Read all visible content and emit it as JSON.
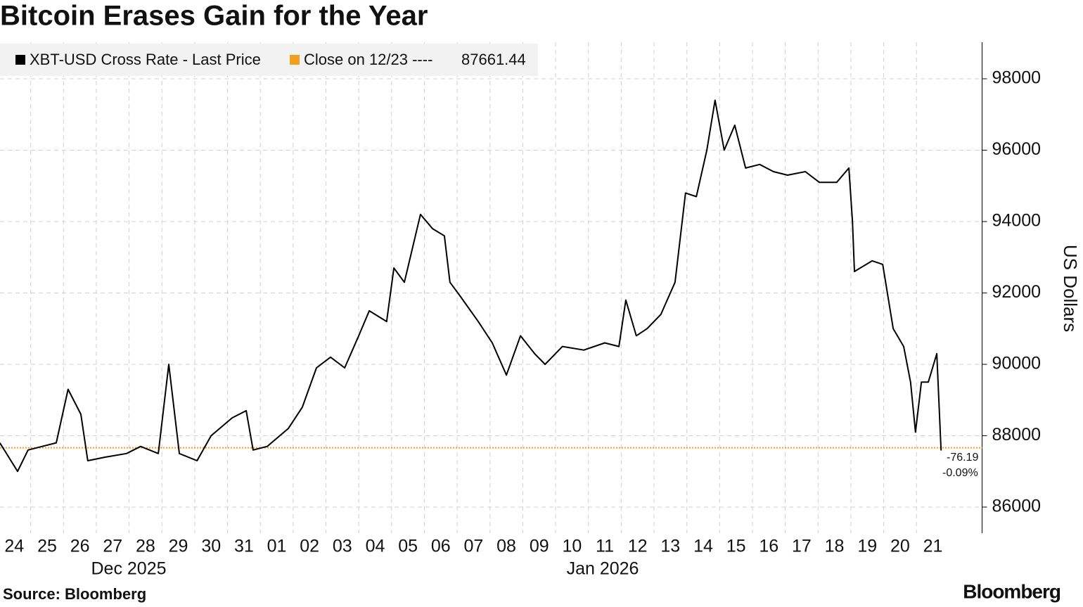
{
  "chart_data": {
    "type": "line",
    "title": "Bitcoin Erases Gain for the Year",
    "source": "Source: Bloomberg",
    "brand": "Bloomberg",
    "y_label": "US Dollars",
    "months": [
      "Dec 2025",
      "Jan 2026"
    ],
    "series": [
      {
        "name": "XBT-USD Cross Rate - Last Price",
        "color": "#000000",
        "x": [
          0.06,
          0.6,
          0.92,
          1.35,
          1.78,
          2.14,
          2.53,
          2.74,
          3.28,
          3.92,
          4.35,
          4.89,
          5.21,
          5.53,
          6.07,
          6.5,
          7.14,
          7.57,
          7.78,
          8.21,
          8.85,
          9.28,
          9.71,
          10.14,
          10.57,
          11.0,
          11.32,
          11.85,
          12.07,
          12.39,
          12.88,
          13.25,
          13.61,
          13.78,
          14.1,
          14.64,
          15.07,
          15.5,
          15.93,
          16.36,
          16.68,
          17.21,
          17.86,
          18.5,
          18.93,
          19.14,
          19.46,
          19.79,
          20.21,
          20.64,
          20.96,
          21.29,
          21.61,
          21.86,
          22.14,
          22.46,
          22.79,
          23.22,
          23.64,
          24.07,
          24.61,
          25.04,
          25.57,
          25.94,
          26.05,
          26.11,
          26.65,
          26.97,
          27.29,
          27.61,
          27.82,
          27.97,
          28.15,
          28.36,
          28.62,
          28.75
        ],
        "values": [
          87800,
          87000,
          87600,
          87700,
          87800,
          89300,
          88600,
          87300,
          87400,
          87500,
          87700,
          87500,
          90000,
          87500,
          87300,
          88000,
          88500,
          88700,
          87600,
          87700,
          88200,
          88800,
          89900,
          90200,
          89900,
          90800,
          91500,
          91200,
          92700,
          92300,
          94200,
          93800,
          93600,
          92300,
          91900,
          91200,
          90600,
          89700,
          90800,
          90300,
          90000,
          90500,
          90400,
          90600,
          90500,
          91800,
          90800,
          91000,
          91400,
          92300,
          94800,
          94700,
          96000,
          97400,
          96000,
          96700,
          95500,
          95600,
          95400,
          95300,
          95400,
          95100,
          95100,
          95500,
          94000,
          92600,
          92900,
          92800,
          91000,
          90500,
          89500,
          88100,
          89500,
          89500,
          90300,
          87585.25
        ]
      }
    ],
    "reference": {
      "label": "Close on 12/23 ----",
      "value": 87661.44,
      "color": "#f0a020"
    },
    "annotations": [
      "-76.19",
      "-0.09%"
    ],
    "xlim": [
      0,
      30
    ],
    "xticks": [
      {
        "value": 0,
        "label": "24"
      },
      {
        "value": 1,
        "label": "25"
      },
      {
        "value": 2,
        "label": "26"
      },
      {
        "value": 3,
        "label": "27"
      },
      {
        "value": 4,
        "label": "28"
      },
      {
        "value": 5,
        "label": "29"
      },
      {
        "value": 6,
        "label": "30"
      },
      {
        "value": 7,
        "label": "31"
      },
      {
        "value": 8,
        "label": "01"
      },
      {
        "value": 9,
        "label": "02"
      },
      {
        "value": 10,
        "label": "03"
      },
      {
        "value": 11,
        "label": "04"
      },
      {
        "value": 12,
        "label": "05"
      },
      {
        "value": 13,
        "label": "06"
      },
      {
        "value": 14,
        "label": "07"
      },
      {
        "value": 15,
        "label": "08"
      },
      {
        "value": 16,
        "label": "09"
      },
      {
        "value": 17,
        "label": "10"
      },
      {
        "value": 18,
        "label": "11"
      },
      {
        "value": 19,
        "label": "12"
      },
      {
        "value": 20,
        "label": "13"
      },
      {
        "value": 21,
        "label": "14"
      },
      {
        "value": 22,
        "label": "15"
      },
      {
        "value": 23,
        "label": "16"
      },
      {
        "value": 24,
        "label": "17"
      },
      {
        "value": 25,
        "label": "18"
      },
      {
        "value": 26,
        "label": "19"
      },
      {
        "value": 27,
        "label": "20"
      },
      {
        "value": 28,
        "label": "21"
      }
    ],
    "ylim": [
      85270,
      99025
    ],
    "yticks": [
      86000,
      88000,
      90000,
      92000,
      94000,
      96000,
      98000
    ],
    "grid": true
  }
}
